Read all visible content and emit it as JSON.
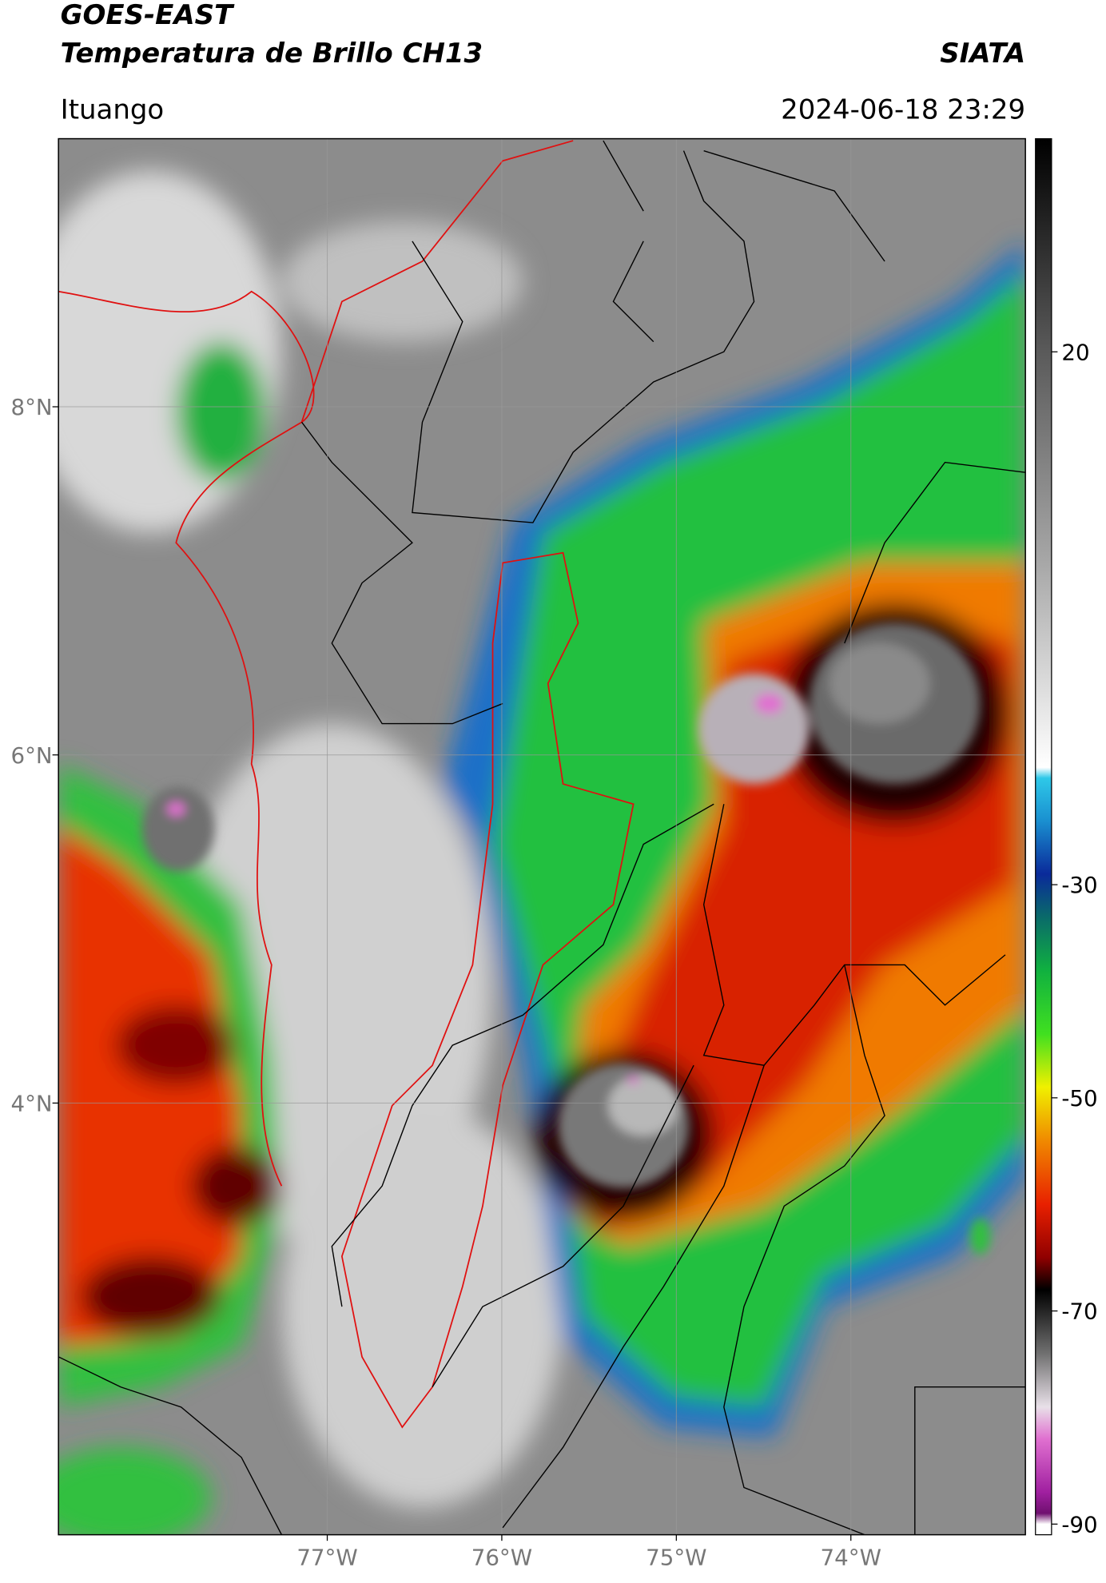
{
  "header": {
    "title": "GOES-EAST",
    "subtitle": "Temperatura de Brillo CH13",
    "agency": "SIATA",
    "location": "Ituango",
    "datetime": "2024-06-18 23:29"
  },
  "chart_data": {
    "type": "map",
    "xlim": [
      -78.54,
      -73.0
    ],
    "ylim": [
      1.52,
      9.54
    ],
    "xticks": [
      {
        "value": -77,
        "label": "77°W"
      },
      {
        "value": -76,
        "label": "76°W"
      },
      {
        "value": -75,
        "label": "75°W"
      },
      {
        "value": -74,
        "label": "74°W"
      }
    ],
    "yticks": [
      {
        "value": 8,
        "label": "8°N"
      },
      {
        "value": 6,
        "label": "6°N"
      },
      {
        "value": 4,
        "label": "4°N"
      }
    ],
    "grid": true,
    "colorbar": {
      "lim": [
        -91,
        40
      ],
      "ticks": [
        20,
        -30,
        -50,
        -70,
        -90
      ],
      "stops": [
        {
          "value": 40,
          "color": "#000000"
        },
        {
          "value": 20,
          "color": "#5a5a5a"
        },
        {
          "value": 0,
          "color": "#a8a8a8"
        },
        {
          "value": -19,
          "color": "#ffffff"
        },
        {
          "value": -20,
          "color": "#2ec8e8"
        },
        {
          "value": -24,
          "color": "#1a90d0"
        },
        {
          "value": -29,
          "color": "#0a2a9a"
        },
        {
          "value": -33,
          "color": "#0a6a6a"
        },
        {
          "value": -38,
          "color": "#10b040"
        },
        {
          "value": -44,
          "color": "#40e020"
        },
        {
          "value": -49,
          "color": "#f0f000"
        },
        {
          "value": -54,
          "color": "#f08a00"
        },
        {
          "value": -60,
          "color": "#e82000"
        },
        {
          "value": -65,
          "color": "#900000"
        },
        {
          "value": -68,
          "color": "#000000"
        },
        {
          "value": -74,
          "color": "#707070"
        },
        {
          "value": -79,
          "color": "#e8e0e8"
        },
        {
          "value": -82,
          "color": "#e070d0"
        },
        {
          "value": -87,
          "color": "#a020a0"
        },
        {
          "value": -89,
          "color": "#701070"
        },
        {
          "value": -90,
          "color": "#ffffff"
        },
        {
          "value": -91,
          "color": "#ffffff"
        }
      ]
    }
  }
}
